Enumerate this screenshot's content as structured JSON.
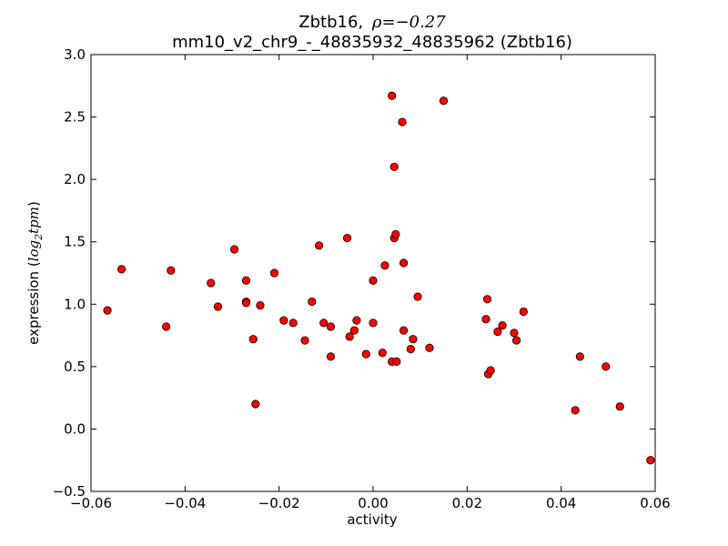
{
  "chart_data": {
    "type": "scatter",
    "title_gene": "Zbtb16,",
    "title_rho": "ρ=−0.27",
    "subtitle": "mm10_v2_chr9_-_48835932_48835962 (Zbtb16)",
    "xlabel": "activity",
    "ylabel_prefix": "expression (",
    "ylabel_math": "log",
    "ylabel_sub": "2",
    "ylabel_math2": "tpm",
    "ylabel_suffix": ")",
    "xlim": [
      -0.06,
      0.06
    ],
    "ylim": [
      -0.5,
      3.0
    ],
    "xticks": [
      -0.06,
      -0.04,
      -0.02,
      0.0,
      0.02,
      0.04,
      0.06
    ],
    "xtick_labels": [
      "−0.06",
      "−0.04",
      "−0.02",
      "0.00",
      "0.02",
      "0.04",
      "0.06"
    ],
    "yticks": [
      -0.5,
      0.0,
      0.5,
      1.0,
      1.5,
      2.0,
      2.5,
      3.0
    ],
    "ytick_labels": [
      "−0.5",
      "0.0",
      "0.5",
      "1.0",
      "1.5",
      "2.0",
      "2.5",
      "3.0"
    ],
    "grid": false,
    "marker_color": "#ff0000",
    "marker_edge": "#000000",
    "points": [
      {
        "x": -0.0565,
        "y": 0.95
      },
      {
        "x": -0.0535,
        "y": 1.28
      },
      {
        "x": -0.044,
        "y": 0.82
      },
      {
        "x": -0.043,
        "y": 1.27
      },
      {
        "x": -0.0345,
        "y": 1.17
      },
      {
        "x": -0.033,
        "y": 0.98
      },
      {
        "x": -0.0295,
        "y": 1.44
      },
      {
        "x": -0.027,
        "y": 1.19
      },
      {
        "x": -0.027,
        "y": 1.02
      },
      {
        "x": -0.027,
        "y": 1.01
      },
      {
        "x": -0.0255,
        "y": 0.72
      },
      {
        "x": -0.025,
        "y": 0.2
      },
      {
        "x": -0.024,
        "y": 0.99
      },
      {
        "x": -0.021,
        "y": 1.25
      },
      {
        "x": -0.019,
        "y": 0.87
      },
      {
        "x": -0.017,
        "y": 0.85
      },
      {
        "x": -0.0145,
        "y": 0.71
      },
      {
        "x": -0.013,
        "y": 1.02
      },
      {
        "x": -0.0115,
        "y": 1.47
      },
      {
        "x": -0.0105,
        "y": 0.85
      },
      {
        "x": -0.009,
        "y": 0.82
      },
      {
        "x": -0.009,
        "y": 0.58
      },
      {
        "x": -0.0055,
        "y": 1.53
      },
      {
        "x": -0.005,
        "y": 0.74
      },
      {
        "x": -0.004,
        "y": 0.79
      },
      {
        "x": -0.0035,
        "y": 0.87
      },
      {
        "x": -0.0015,
        "y": 0.6
      },
      {
        "x": 0.0,
        "y": 1.19
      },
      {
        "x": 0.0,
        "y": 0.85
      },
      {
        "x": 0.002,
        "y": 0.61
      },
      {
        "x": 0.0025,
        "y": 1.31
      },
      {
        "x": 0.004,
        "y": 2.67
      },
      {
        "x": 0.004,
        "y": 0.54
      },
      {
        "x": 0.0045,
        "y": 2.1
      },
      {
        "x": 0.0045,
        "y": 1.53
      },
      {
        "x": 0.0048,
        "y": 1.56
      },
      {
        "x": 0.005,
        "y": 0.54
      },
      {
        "x": 0.0062,
        "y": 2.46
      },
      {
        "x": 0.0065,
        "y": 1.33
      },
      {
        "x": 0.0065,
        "y": 0.79
      },
      {
        "x": 0.008,
        "y": 0.64
      },
      {
        "x": 0.0085,
        "y": 0.72
      },
      {
        "x": 0.0095,
        "y": 1.06
      },
      {
        "x": 0.012,
        "y": 0.65
      },
      {
        "x": 0.015,
        "y": 2.63
      },
      {
        "x": 0.024,
        "y": 0.88
      },
      {
        "x": 0.0243,
        "y": 1.04
      },
      {
        "x": 0.0245,
        "y": 0.44
      },
      {
        "x": 0.025,
        "y": 0.47
      },
      {
        "x": 0.0265,
        "y": 0.78
      },
      {
        "x": 0.0275,
        "y": 0.83
      },
      {
        "x": 0.03,
        "y": 0.77
      },
      {
        "x": 0.0305,
        "y": 0.71
      },
      {
        "x": 0.032,
        "y": 0.94
      },
      {
        "x": 0.043,
        "y": 0.15
      },
      {
        "x": 0.044,
        "y": 0.58
      },
      {
        "x": 0.0495,
        "y": 0.5
      },
      {
        "x": 0.0525,
        "y": 0.18
      },
      {
        "x": 0.059,
        "y": -0.25
      }
    ]
  }
}
